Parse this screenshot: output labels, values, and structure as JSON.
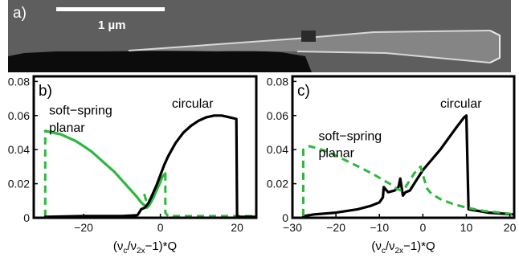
{
  "figure": {
    "panel_a": {
      "label": "a)",
      "scale_bar_text": "1 µm",
      "background_color": "#5e5e5e",
      "substrate_color": "#0c0c0c",
      "beam_color": "#8c8c8c"
    }
  },
  "colors": {
    "black_series": "#000000",
    "green_series": "#2db83d"
  },
  "chart_data": [
    {
      "type": "line",
      "panel_label": "b)",
      "title": "",
      "xlabel_parts": {
        "open": "(ν",
        "sub1": "c",
        "slash": "/ν",
        "sub2": "2x",
        "close": "−1)*Q"
      },
      "ylabel": "",
      "xlim": [
        -33,
        25
      ],
      "ylim": [
        0,
        0.083
      ],
      "xticks": [
        -20,
        0,
        20
      ],
      "yticks": [
        0,
        0.02,
        0.04,
        0.06,
        0.08
      ],
      "xtick_labels": [
        "−20",
        "0",
        "20"
      ],
      "ytick_labels": [
        "0",
        "0.02",
        "0.04",
        "0.06",
        "0.08"
      ],
      "grid": false,
      "annotations": [
        {
          "id": "soft_line1",
          "text": "soft−spring",
          "x": -29,
          "y": 0.0605
        },
        {
          "id": "soft_line2",
          "text": "planar",
          "x": -29,
          "y": 0.0505
        },
        {
          "id": "circular",
          "text": "circular",
          "x": 3,
          "y": 0.0645
        }
      ],
      "series": [
        {
          "id": "green",
          "style": "solid",
          "color_key": "green_series",
          "x": [
            -30,
            -28,
            -26,
            -24,
            -22,
            -20,
            -18,
            -16,
            -14,
            -12,
            -10,
            -8,
            -6,
            -5,
            -4,
            -3.5,
            -3,
            -2,
            -1,
            0,
            0.5,
            1.3
          ],
          "y": [
            0.051,
            0.05,
            0.049,
            0.047,
            0.045,
            0.042,
            0.039,
            0.035,
            0.031,
            0.027,
            0.022,
            0.017,
            0.012,
            0.009,
            0.007,
            0.006,
            0.007,
            0.011,
            0.016,
            0.021,
            0.024,
            0.026
          ]
        },
        {
          "id": "green_dash_left",
          "style": "dashed",
          "color_key": "green_series",
          "x": [
            -30,
            -30
          ],
          "y": [
            0.0005,
            0.051
          ]
        },
        {
          "id": "green_dash_mid",
          "style": "dashed",
          "color_key": "green_series",
          "x": [
            -4.2,
            -3.3,
            -2.5
          ],
          "y": [
            0.014,
            0.007,
            0.013
          ]
        },
        {
          "id": "green_dash_right",
          "style": "dashed",
          "color_key": "green_series",
          "x": [
            1.3,
            1.3,
            2,
            25
          ],
          "y": [
            0.026,
            0.003,
            0.001,
            0.001
          ]
        },
        {
          "id": "black",
          "style": "solid",
          "color_key": "black_series",
          "x": [
            -30,
            -20,
            -10,
            -6,
            -5.5,
            -5,
            -4,
            -3,
            -2,
            -1,
            0,
            1,
            2,
            3,
            4,
            5,
            6,
            8,
            10,
            12,
            14,
            16,
            18,
            19.8,
            20,
            25
          ],
          "y": [
            0.0005,
            0.001,
            0.001,
            0.0015,
            0.003,
            0.005,
            0.006,
            0.009,
            0.014,
            0.019,
            0.025,
            0.031,
            0.036,
            0.04,
            0.044,
            0.047,
            0.05,
            0.054,
            0.057,
            0.059,
            0.06,
            0.06,
            0.059,
            0.058,
            0.0005,
            0.0005
          ]
        }
      ]
    },
    {
      "type": "line",
      "panel_label": "c)",
      "title": "",
      "xlabel_parts": {
        "open": "(ν",
        "sub1": "c",
        "slash": "/ν",
        "sub2": "2x",
        "close": "−1)*Q"
      },
      "ylabel": "",
      "xlim": [
        -30,
        21
      ],
      "ylim": [
        0,
        0.083
      ],
      "xticks": [
        -30,
        -20,
        -10,
        0,
        10,
        20
      ],
      "yticks": [
        0,
        0.02,
        0.04,
        0.06,
        0.08
      ],
      "xtick_labels": [
        "−30",
        "−20",
        "−10",
        "0",
        "10",
        "20"
      ],
      "ytick_labels": [
        "0",
        "0.02",
        "0.04",
        "0.06",
        "0.08"
      ],
      "grid": false,
      "annotations": [
        {
          "id": "soft_line1",
          "text": "soft−spring",
          "x": -24,
          "y": 0.0455
        },
        {
          "id": "soft_line2",
          "text": "planar",
          "x": -24,
          "y": 0.0355
        },
        {
          "id": "circular",
          "text": "circular",
          "x": 4,
          "y": 0.0645
        }
      ],
      "series": [
        {
          "id": "black",
          "style": "solid",
          "color_key": "black_series",
          "x": [
            -27.5,
            -25,
            -20,
            -15,
            -12,
            -10,
            -9.2,
            -9,
            -8,
            -6.5,
            -5.6,
            -5.2,
            -4.6,
            -4,
            -3,
            -2,
            -1,
            0,
            2,
            4,
            6,
            8,
            9.5,
            10,
            10.5,
            15,
            21
          ],
          "y": [
            0.001,
            0.002,
            0.003,
            0.005,
            0.007,
            0.009,
            0.012,
            0.018,
            0.015,
            0.016,
            0.018,
            0.023,
            0.013,
            0.015,
            0.016,
            0.02,
            0.024,
            0.028,
            0.034,
            0.04,
            0.047,
            0.054,
            0.059,
            0.06,
            0.005,
            0.003,
            0.002
          ]
        },
        {
          "id": "green",
          "style": "dashed",
          "color_key": "green_series",
          "x": [
            -27.5,
            -27.5,
            -26,
            -22,
            -18,
            -14,
            -11,
            -9,
            -7,
            -6,
            -5,
            -4,
            -3,
            -2,
            -1,
            -0.5,
            0,
            1,
            2,
            4,
            7,
            10,
            14,
            18,
            21
          ],
          "y": [
            0.001,
            0.04,
            0.042,
            0.039,
            0.034,
            0.029,
            0.025,
            0.022,
            0.019,
            0.017,
            0.016,
            0.018,
            0.022,
            0.026,
            0.029,
            0.03,
            0.025,
            0.017,
            0.014,
            0.011,
            0.008,
            0.006,
            0.004,
            0.003,
            0.002
          ]
        }
      ]
    }
  ]
}
